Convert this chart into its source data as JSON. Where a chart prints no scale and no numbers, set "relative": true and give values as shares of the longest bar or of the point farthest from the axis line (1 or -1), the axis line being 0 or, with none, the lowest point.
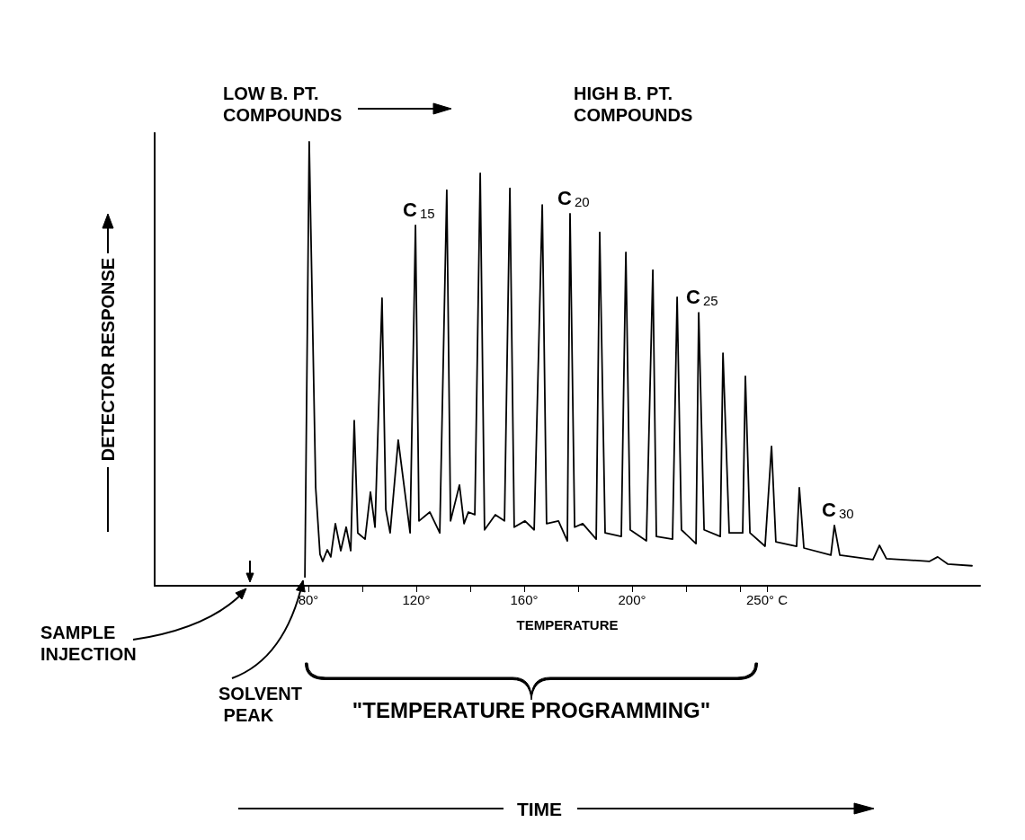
{
  "chart_data": {
    "type": "line",
    "relative": true,
    "xlabel": "TEMPERATURE",
    "ylabel": "DETECTOR RESPONSE",
    "marker": "none",
    "line_style": "solid",
    "xlim": [
      23,
      329
    ],
    "xticks": [
      {
        "value": 80,
        "label": "80°"
      },
      {
        "value": 100,
        "label": null
      },
      {
        "value": 120,
        "label": "120°"
      },
      {
        "value": 140,
        "label": null
      },
      {
        "value": 160,
        "label": "160°"
      },
      {
        "value": 180,
        "label": null
      },
      {
        "value": 200,
        "label": "200°"
      },
      {
        "value": 220,
        "label": null
      },
      {
        "value": 240,
        "label": null
      },
      {
        "value": 250,
        "label": "250° C"
      }
    ],
    "x": [
      78.7,
      80.3,
      82.7,
      84.3,
      85.3,
      87.0,
      88.3,
      90.0,
      92.0,
      94.0,
      95.7,
      97.0,
      98.3,
      101.0,
      103.0,
      104.7,
      107.3,
      108.7,
      110.3,
      113.3,
      117.7,
      119.7,
      121.0,
      125.0,
      128.7,
      131.3,
      132.7,
      136.0,
      137.7,
      139.3,
      141.7,
      143.7,
      145.3,
      149.3,
      152.7,
      154.7,
      156.3,
      160.3,
      163.7,
      166.7,
      168.3,
      172.7,
      176.0,
      177.0,
      178.7,
      181.7,
      186.7,
      188.0,
      190.0,
      196.0,
      197.7,
      199.3,
      205.3,
      207.7,
      209.0,
      215.0,
      216.7,
      218.3,
      223.7,
      224.7,
      226.7,
      232.7,
      233.7,
      236.0,
      241.0,
      242.0,
      243.7,
      249.3,
      251.7,
      253.3,
      261.0,
      262.0,
      263.7,
      273.7,
      275.0,
      277.0,
      289.3,
      291.7,
      294.3,
      310.3,
      313.3,
      317.0,
      326.0
    ],
    "series": [
      {
        "color": "#000000",
        "values": [
          0.02,
          1.0,
          0.221,
          0.071,
          0.055,
          0.081,
          0.065,
          0.14,
          0.079,
          0.132,
          0.079,
          0.372,
          0.119,
          0.105,
          0.211,
          0.132,
          0.648,
          0.172,
          0.119,
          0.328,
          0.119,
          0.812,
          0.146,
          0.166,
          0.119,
          0.891,
          0.146,
          0.227,
          0.14,
          0.166,
          0.16,
          0.929,
          0.126,
          0.16,
          0.146,
          0.895,
          0.132,
          0.146,
          0.126,
          0.858,
          0.14,
          0.146,
          0.101,
          0.838,
          0.132,
          0.14,
          0.105,
          0.796,
          0.119,
          0.111,
          0.751,
          0.126,
          0.101,
          0.711,
          0.111,
          0.105,
          0.65,
          0.126,
          0.095,
          0.615,
          0.126,
          0.111,
          0.524,
          0.119,
          0.119,
          0.472,
          0.119,
          0.089,
          0.314,
          0.099,
          0.089,
          0.221,
          0.085,
          0.069,
          0.136,
          0.069,
          0.059,
          0.091,
          0.061,
          0.055,
          0.065,
          0.049,
          0.045
        ]
      }
    ],
    "annotations": [
      {
        "text": "C$_{15}$",
        "x": 119.7,
        "y": 0.812
      },
      {
        "text": "C$_{20}$",
        "x": 177.0,
        "y": 0.838
      },
      {
        "text": "C$_{25}$",
        "x": 224.7,
        "y": 0.615
      },
      {
        "text": "C$_{30}$",
        "x": 275.0,
        "y": 0.136
      },
      "LOW B. PT. COMPOUNDS",
      "HIGH B. PT. COMPOUNDS",
      "SAMPLE INJECTION",
      {
        "text": "SOLVENT PEAK",
        "x": 80,
        "y": 0.02
      },
      "\"TEMPERATURE PROGRAMMING\"",
      "TIME"
    ]
  }
}
